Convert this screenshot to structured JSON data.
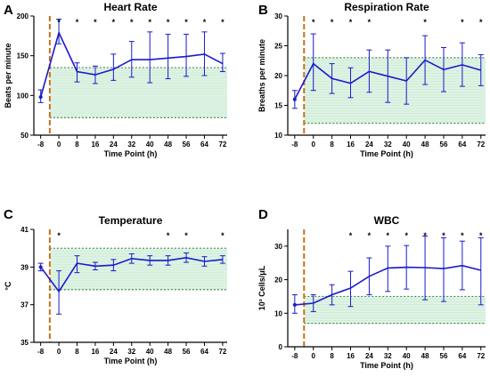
{
  "colors": {
    "series": "#1a1acd",
    "band_fill": "#dff3e5",
    "band_line": "#4b8a55",
    "dosing_line": "#c8711a",
    "dosing_line_inner": "#b8860b"
  },
  "chart_data": [
    {
      "panel": "A",
      "type": "line",
      "title": "Heart Rate",
      "xlabel": "Time Point (h)",
      "ylabel": "Beats per minute",
      "xlim": [
        -11,
        74
      ],
      "ylim": [
        50,
        200
      ],
      "x_ticks": [
        -8,
        0,
        8,
        16,
        24,
        32,
        40,
        48,
        56,
        64,
        72
      ],
      "x_tick_labels": [
        "-8",
        "0",
        "8",
        "16",
        "24",
        "32",
        "40",
        "48",
        "56",
        "64",
        "72"
      ],
      "y_ticks": [
        50,
        100,
        150,
        200
      ],
      "y_tick_labels": [
        "50",
        "100",
        "150",
        "200"
      ],
      "dosing_x": -4,
      "reference_range": [
        72,
        135
      ],
      "significance_label": "*",
      "significant_x": [
        0,
        8,
        16,
        24,
        32,
        40,
        48,
        56,
        64,
        72
      ],
      "points": [
        {
          "x": -8,
          "y": 98,
          "lo": 91,
          "hi": 107
        },
        {
          "x": 0,
          "y": 179,
          "lo": 165,
          "hi": 196
        },
        {
          "x": 8,
          "y": 130,
          "lo": 117,
          "hi": 141
        },
        {
          "x": 16,
          "y": 126,
          "lo": 115,
          "hi": 137
        },
        {
          "x": 24,
          "y": 133,
          "lo": 119,
          "hi": 152
        },
        {
          "x": 32,
          "y": 145,
          "lo": 123,
          "hi": 168
        },
        {
          "x": 40,
          "y": 145,
          "lo": 116,
          "hi": 180
        },
        {
          "x": 48,
          "y": 147,
          "lo": 121,
          "hi": 177
        },
        {
          "x": 56,
          "y": 149,
          "lo": 124,
          "hi": 177
        },
        {
          "x": 64,
          "y": 152,
          "lo": 125,
          "hi": 180
        },
        {
          "x": 72,
          "y": 140,
          "lo": 130,
          "hi": 153
        }
      ]
    },
    {
      "panel": "B",
      "type": "line",
      "title": "Respiration Rate",
      "xlabel": "Time Point (h)",
      "ylabel": "Breaths per minute",
      "xlim": [
        -11,
        74
      ],
      "ylim": [
        10,
        30
      ],
      "x_ticks": [
        -8,
        0,
        8,
        16,
        24,
        32,
        40,
        48,
        56,
        64,
        72
      ],
      "x_tick_labels": [
        "-8",
        "0",
        "8",
        "16",
        "24",
        "32",
        "40",
        "48",
        "56",
        "64",
        "72"
      ],
      "y_ticks": [
        10,
        15,
        20,
        25,
        30
      ],
      "y_tick_labels": [
        "10",
        "15",
        "20",
        "25",
        "30"
      ],
      "dosing_x": -4,
      "reference_range": [
        12,
        23
      ],
      "significance_label": "*",
      "significant_x": [
        0,
        8,
        16,
        24,
        48,
        64,
        72
      ],
      "points": [
        {
          "x": -8,
          "y": 16,
          "lo": 14.5,
          "hi": 17.5
        },
        {
          "x": 0,
          "y": 22,
          "lo": 17.5,
          "hi": 27
        },
        {
          "x": 8,
          "y": 19.5,
          "lo": 17,
          "hi": 22
        },
        {
          "x": 16,
          "y": 18.7,
          "lo": 16.3,
          "hi": 21.3
        },
        {
          "x": 24,
          "y": 20.7,
          "lo": 17.2,
          "hi": 24.3
        },
        {
          "x": 32,
          "y": 19.9,
          "lo": 15.5,
          "hi": 24.3
        },
        {
          "x": 40,
          "y": 19.1,
          "lo": 15.2,
          "hi": 23
        },
        {
          "x": 48,
          "y": 22.6,
          "lo": 18.5,
          "hi": 26.7
        },
        {
          "x": 56,
          "y": 21,
          "lo": 17.3,
          "hi": 24.7
        },
        {
          "x": 64,
          "y": 21.8,
          "lo": 18.2,
          "hi": 25.5
        },
        {
          "x": 72,
          "y": 20.9,
          "lo": 18.3,
          "hi": 23.5
        }
      ]
    },
    {
      "panel": "C",
      "type": "line",
      "title": "Temperature",
      "xlabel": "Time Point (h)",
      "ylabel": "°C",
      "xlim": [
        -11,
        74
      ],
      "ylim": [
        35,
        41
      ],
      "x_ticks": [
        -8,
        0,
        8,
        16,
        24,
        32,
        40,
        48,
        56,
        64,
        72
      ],
      "x_tick_labels": [
        "-8",
        "0",
        "8",
        "16",
        "24",
        "32",
        "40",
        "48",
        "56",
        "64",
        "72"
      ],
      "y_ticks": [
        35,
        37,
        39,
        41
      ],
      "y_tick_labels": [
        "35",
        "37",
        "39",
        "41"
      ],
      "dosing_x": -4,
      "reference_range": [
        37.8,
        40
      ],
      "significance_label": "*",
      "significant_x": [
        0,
        48,
        56,
        72
      ],
      "points": [
        {
          "x": -8,
          "y": 39,
          "lo": 38.8,
          "hi": 39.2
        },
        {
          "x": 0,
          "y": 37.7,
          "lo": 36.5,
          "hi": 38.8
        },
        {
          "x": 8,
          "y": 39.2,
          "lo": 38.7,
          "hi": 39.6
        },
        {
          "x": 16,
          "y": 39.05,
          "lo": 38.85,
          "hi": 39.25
        },
        {
          "x": 24,
          "y": 39.1,
          "lo": 38.8,
          "hi": 39.4
        },
        {
          "x": 32,
          "y": 39.45,
          "lo": 39.2,
          "hi": 39.7
        },
        {
          "x": 40,
          "y": 39.35,
          "lo": 39.1,
          "hi": 39.6
        },
        {
          "x": 48,
          "y": 39.35,
          "lo": 39.1,
          "hi": 39.6
        },
        {
          "x": 56,
          "y": 39.5,
          "lo": 39.25,
          "hi": 39.75
        },
        {
          "x": 64,
          "y": 39.3,
          "lo": 39.05,
          "hi": 39.55
        },
        {
          "x": 72,
          "y": 39.4,
          "lo": 39.2,
          "hi": 39.6
        }
      ]
    },
    {
      "panel": "D",
      "type": "line",
      "title": "WBC",
      "xlabel": "Time Point (h)",
      "ylabel": "10³ Cells/μL",
      "xlim": [
        -11,
        74
      ],
      "ylim": [
        0,
        35
      ],
      "x_ticks": [
        -8,
        0,
        8,
        16,
        24,
        32,
        40,
        48,
        56,
        64,
        72
      ],
      "x_tick_labels": [
        "-8",
        "0",
        "8",
        "16",
        "24",
        "32",
        "40",
        "48",
        "56",
        "64",
        "72"
      ],
      "y_ticks": [
        0,
        10,
        20,
        30
      ],
      "y_tick_labels": [
        "0",
        "10",
        "20",
        "30"
      ],
      "dosing_x": -4,
      "reference_range": [
        7,
        15
      ],
      "significance_label": "*",
      "significant_x": [
        16,
        24,
        32,
        40,
        48,
        56,
        64,
        72
      ],
      "points": [
        {
          "x": -8,
          "y": 12.5,
          "lo": 10,
          "hi": 15.5
        },
        {
          "x": 0,
          "y": 13,
          "lo": 10.5,
          "hi": 15.5
        },
        {
          "x": 8,
          "y": 15.5,
          "lo": 12.5,
          "hi": 18.5
        },
        {
          "x": 16,
          "y": 17.5,
          "lo": 12,
          "hi": 22.5
        },
        {
          "x": 24,
          "y": 21,
          "lo": 15.5,
          "hi": 26.5
        },
        {
          "x": 32,
          "y": 23.5,
          "lo": 16.5,
          "hi": 30
        },
        {
          "x": 40,
          "y": 23.7,
          "lo": 17.2,
          "hi": 30.2
        },
        {
          "x": 48,
          "y": 23.6,
          "lo": 14,
          "hi": 33
        },
        {
          "x": 56,
          "y": 23.3,
          "lo": 13.5,
          "hi": 32.5
        },
        {
          "x": 64,
          "y": 24.2,
          "lo": 17,
          "hi": 31.5
        },
        {
          "x": 72,
          "y": 22.8,
          "lo": 12.5,
          "hi": 32.5
        }
      ]
    }
  ]
}
